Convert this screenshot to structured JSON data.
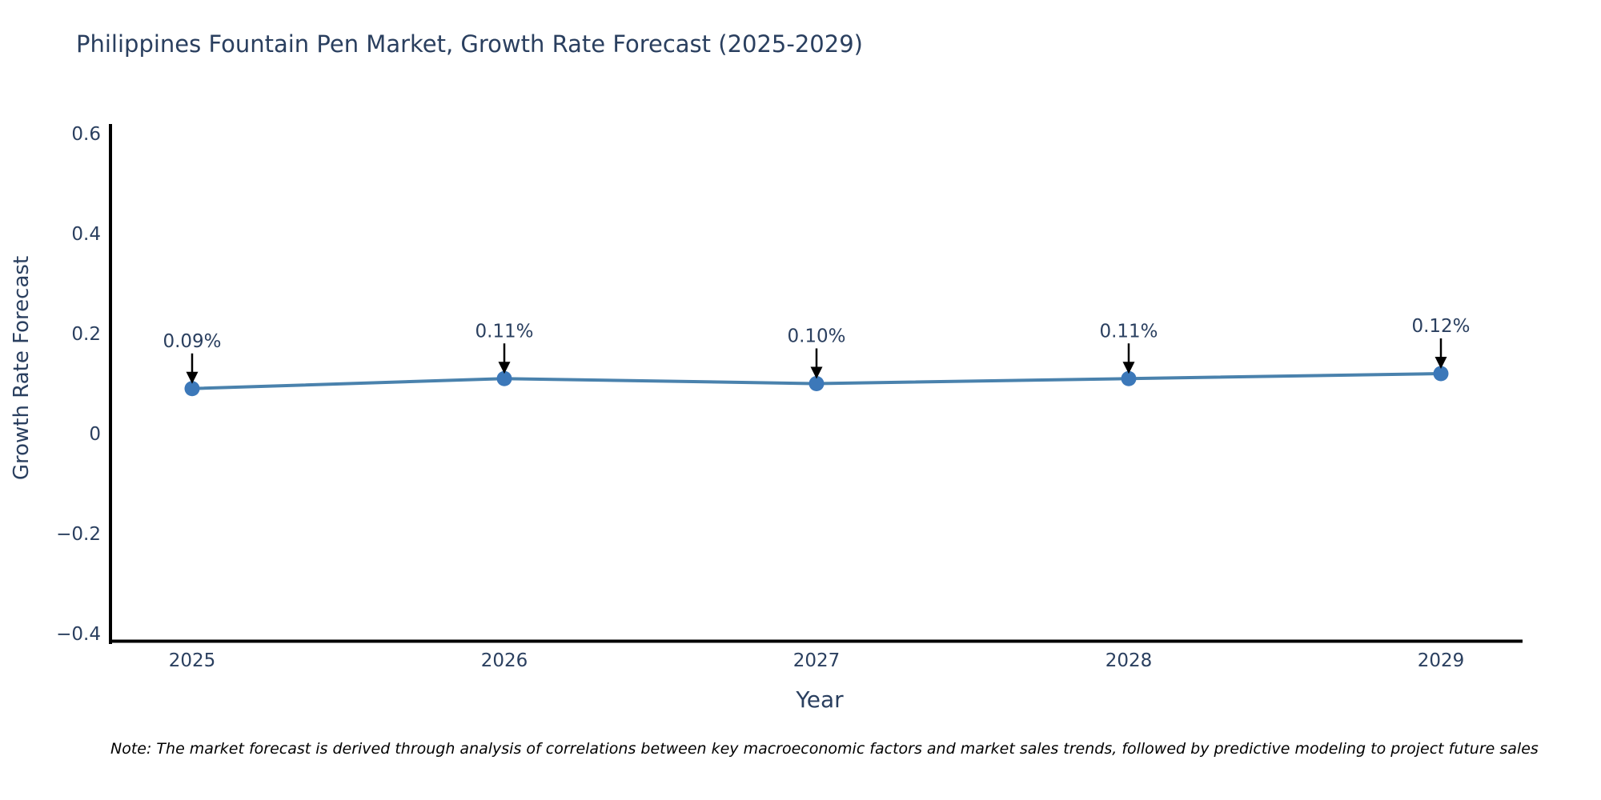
{
  "footnote": "Note: The market forecast is derived through analysis of correlations between key macroeconomic factors and market sales trends, followed by predictive modeling to project future sales",
  "chart_data": {
    "type": "line",
    "title": "Philippines Fountain Pen Market, Growth Rate Forecast (2025-2029)",
    "xlabel": "Year",
    "ylabel": "Growth Rate Forecast",
    "x": [
      2025,
      2026,
      2027,
      2028,
      2029
    ],
    "x_tick_labels": [
      "2025",
      "2026",
      "2027",
      "2028",
      "2029"
    ],
    "values": [
      0.09,
      0.11,
      0.1,
      0.11,
      0.12
    ],
    "point_labels": [
      "0.09%",
      "0.11%",
      "0.10%",
      "0.11%",
      "0.12%"
    ],
    "y_ticks": [
      0.6,
      0.4,
      0.2,
      0,
      -0.2,
      -0.4
    ],
    "y_tick_labels": [
      "0.6",
      "0.4",
      "0.2",
      "0",
      "−0.2",
      "−0.4"
    ],
    "ylim": [
      -0.42,
      0.62
    ],
    "grid": false,
    "legend": false,
    "colors": {
      "line": "#4a82ad",
      "marker": "#3c78b9",
      "axis": "#000000",
      "text": "#2a3f5f",
      "annotation_arrow": "#000000"
    }
  }
}
